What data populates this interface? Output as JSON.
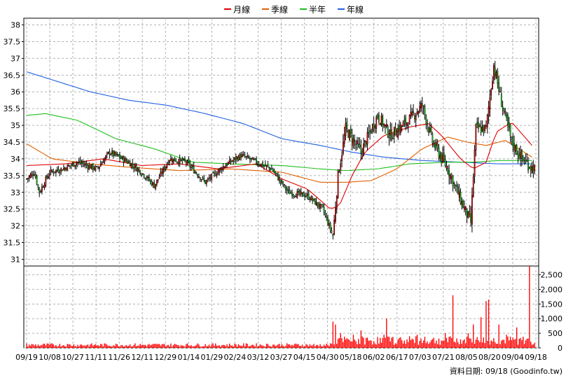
{
  "chart_data": {
    "type": "candlestick",
    "legend": [
      {
        "name": "月線",
        "color": "#e00000"
      },
      {
        "name": "季線",
        "color": "#e06000"
      },
      {
        "name": "半年",
        "color": "#20c020"
      },
      {
        "name": "年線",
        "color": "#2060e0"
      }
    ],
    "y_ticks": [
      "31",
      "31.5",
      "32",
      "32.5",
      "33",
      "33.5",
      "34",
      "34.5",
      "35",
      "35.5",
      "36",
      "36.5",
      "37",
      "37.5",
      "38"
    ],
    "ylim": [
      30.8,
      38.2
    ],
    "volume_ticks": [
      "0",
      "500",
      "1,000",
      "1,500",
      "2,000",
      "2,500"
    ],
    "volume_lim": [
      0,
      2800
    ],
    "x_labels": [
      "09/19",
      "10/08",
      "10/27",
      "11/11",
      "11/26",
      "12/11",
      "12/29",
      "01/14",
      "01/29",
      "02/24",
      "03/12",
      "03/27",
      "04/15",
      "04/30",
      "05/18",
      "06/02",
      "06/17",
      "07/03",
      "07/21",
      "08/05",
      "08/20",
      "09/04",
      "09/18"
    ],
    "price_anchors": [
      [
        0,
        33.4
      ],
      [
        6,
        33.6
      ],
      [
        10,
        33.0
      ],
      [
        18,
        33.6
      ],
      [
        28,
        33.7
      ],
      [
        40,
        33.9
      ],
      [
        55,
        33.7
      ],
      [
        65,
        34.2
      ],
      [
        80,
        33.9
      ],
      [
        90,
        33.6
      ],
      [
        100,
        33.2
      ],
      [
        112,
        34.0
      ],
      [
        125,
        33.9
      ],
      [
        140,
        33.3
      ],
      [
        155,
        33.8
      ],
      [
        168,
        34.1
      ],
      [
        180,
        33.9
      ],
      [
        192,
        33.7
      ],
      [
        205,
        33.0
      ],
      [
        220,
        32.9
      ],
      [
        232,
        32.5
      ],
      [
        240,
        31.7
      ],
      [
        244,
        33.5
      ],
      [
        250,
        34.9
      ],
      [
        262,
        34.2
      ],
      [
        275,
        35.3
      ],
      [
        285,
        34.7
      ],
      [
        298,
        35.1
      ],
      [
        310,
        35.6
      ],
      [
        318,
        34.5
      ],
      [
        330,
        33.7
      ],
      [
        342,
        32.6
      ],
      [
        348,
        32.1
      ],
      [
        352,
        34.9
      ],
      [
        360,
        34.9
      ],
      [
        366,
        36.8
      ],
      [
        372,
        35.7
      ],
      [
        380,
        34.5
      ],
      [
        388,
        34.0
      ],
      [
        394,
        33.8
      ],
      [
        398,
        33.7
      ]
    ],
    "ma_month": [
      [
        0,
        33.8
      ],
      [
        30,
        33.85
      ],
      [
        60,
        34.0
      ],
      [
        90,
        33.8
      ],
      [
        120,
        33.85
      ],
      [
        150,
        33.7
      ],
      [
        180,
        33.85
      ],
      [
        200,
        33.4
      ],
      [
        220,
        33.1
      ],
      [
        238,
        32.5
      ],
      [
        245,
        32.6
      ],
      [
        255,
        33.5
      ],
      [
        265,
        34.2
      ],
      [
        280,
        34.7
      ],
      [
        300,
        34.95
      ],
      [
        315,
        35.05
      ],
      [
        325,
        34.7
      ],
      [
        340,
        34.0
      ],
      [
        350,
        33.7
      ],
      [
        360,
        33.9
      ],
      [
        368,
        34.8
      ],
      [
        380,
        35.1
      ],
      [
        396,
        34.4
      ]
    ],
    "ma_quarter": [
      [
        0,
        34.45
      ],
      [
        20,
        34.0
      ],
      [
        50,
        33.85
      ],
      [
        80,
        33.75
      ],
      [
        120,
        33.65
      ],
      [
        160,
        33.7
      ],
      [
        200,
        33.6
      ],
      [
        230,
        33.3
      ],
      [
        250,
        33.3
      ],
      [
        270,
        33.35
      ],
      [
        290,
        33.7
      ],
      [
        310,
        34.3
      ],
      [
        330,
        34.65
      ],
      [
        345,
        34.5
      ],
      [
        360,
        34.4
      ],
      [
        375,
        34.55
      ],
      [
        396,
        34.05
      ]
    ],
    "ma_half": [
      [
        0,
        35.3
      ],
      [
        15,
        35.35
      ],
      [
        40,
        35.15
      ],
      [
        70,
        34.6
      ],
      [
        100,
        34.3
      ],
      [
        130,
        33.9
      ],
      [
        160,
        33.85
      ],
      [
        200,
        33.8
      ],
      [
        230,
        33.7
      ],
      [
        250,
        33.65
      ],
      [
        275,
        33.7
      ],
      [
        300,
        33.85
      ],
      [
        330,
        33.9
      ],
      [
        350,
        33.9
      ],
      [
        370,
        33.95
      ],
      [
        396,
        33.95
      ]
    ],
    "ma_year": [
      [
        0,
        36.6
      ],
      [
        25,
        36.3
      ],
      [
        50,
        36.0
      ],
      [
        80,
        35.75
      ],
      [
        110,
        35.6
      ],
      [
        140,
        35.35
      ],
      [
        170,
        35.05
      ],
      [
        200,
        34.6
      ],
      [
        230,
        34.4
      ],
      [
        255,
        34.2
      ],
      [
        280,
        34.05
      ],
      [
        310,
        33.95
      ],
      [
        340,
        33.9
      ],
      [
        370,
        33.85
      ],
      [
        396,
        33.85
      ]
    ],
    "volume_spikes": [
      [
        226,
        60
      ],
      [
        240,
        900
      ],
      [
        242,
        800
      ],
      [
        246,
        500
      ],
      [
        256,
        450
      ],
      [
        262,
        600
      ],
      [
        280,
        450
      ],
      [
        282,
        1000
      ],
      [
        286,
        350
      ],
      [
        300,
        400
      ],
      [
        306,
        450
      ],
      [
        312,
        380
      ],
      [
        318,
        300
      ],
      [
        328,
        500
      ],
      [
        334,
        1800
      ],
      [
        346,
        500
      ],
      [
        350,
        800
      ],
      [
        356,
        1050
      ],
      [
        360,
        1600
      ],
      [
        362,
        1650
      ],
      [
        370,
        800
      ],
      [
        376,
        450
      ],
      [
        384,
        700
      ],
      [
        394,
        3100
      ]
    ],
    "footer": "資料日期: 09/18  (Goodinfo.tw)"
  }
}
